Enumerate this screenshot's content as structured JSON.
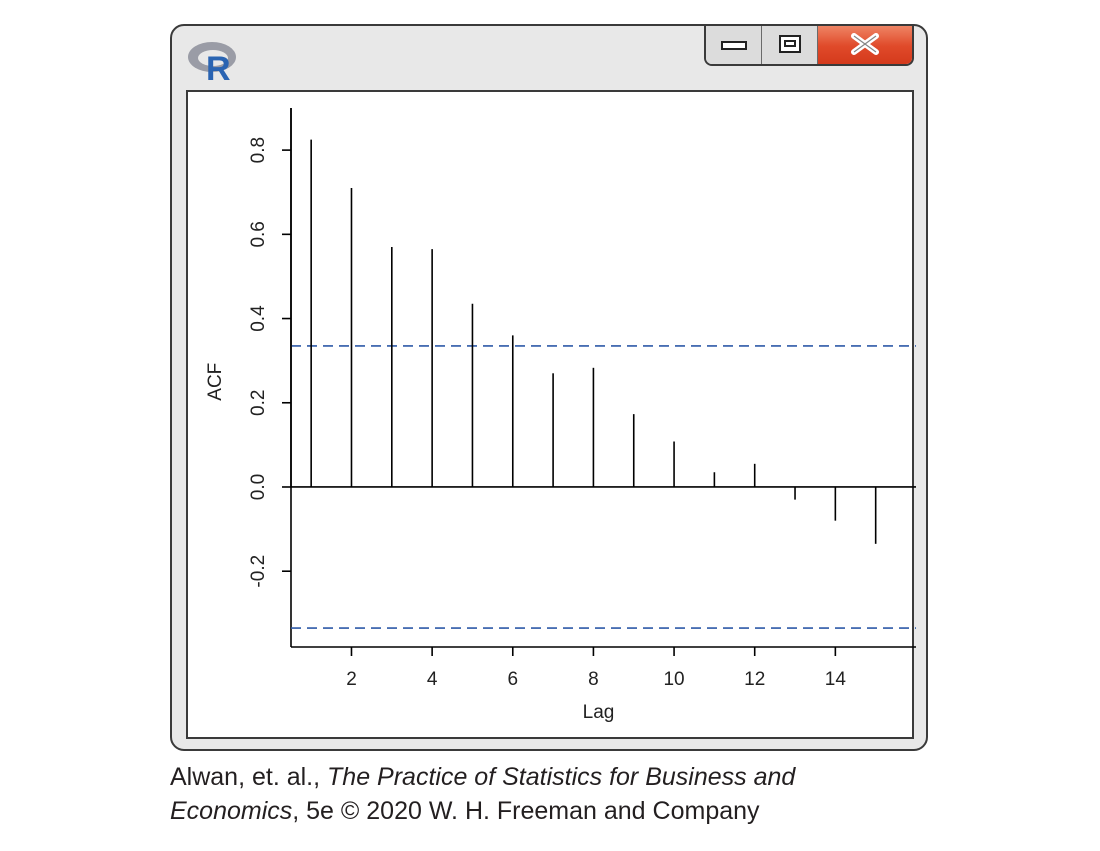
{
  "window": {
    "app_icon": "r-logo-icon",
    "logo_letter": "R",
    "buttons": {
      "minimize": "minimize-icon",
      "maximize": "maximize-icon",
      "close": "close-icon"
    },
    "colors": {
      "close_button": "#e04a2a",
      "logo_blue": "#2a64b2",
      "logo_gray": "#9a9ca6"
    }
  },
  "chart_data": {
    "type": "bar",
    "plot_kind": "acf-spikes",
    "xlabel": "Lag",
    "ylabel": "ACF",
    "x": [
      1,
      2,
      3,
      4,
      5,
      6,
      7,
      8,
      9,
      10,
      11,
      12,
      13,
      14,
      15
    ],
    "values": [
      0.825,
      0.71,
      0.57,
      0.565,
      0.435,
      0.36,
      0.27,
      0.283,
      0.173,
      0.108,
      0.035,
      0.055,
      -0.03,
      -0.08,
      -0.135
    ],
    "lag0_value": 1.0,
    "xlim": [
      0.5,
      16
    ],
    "ylim": [
      -0.38,
      0.9
    ],
    "xticks": [
      2,
      4,
      6,
      8,
      10,
      12,
      14
    ],
    "yticks": [
      -0.2,
      0.0,
      0.2,
      0.4,
      0.6,
      0.8
    ],
    "ytick_labels": [
      "-0.2",
      "0.0",
      "0.2",
      "0.4",
      "0.6",
      "0.8"
    ],
    "confidence_band": 0.335,
    "colors": {
      "spikes": "#000000",
      "confidence_lines": "#2f5aa8",
      "zero_line": "#000000"
    },
    "grid": false
  },
  "caption": {
    "author": "Alwan, et. al., ",
    "title_line1": "The Practice of Statistics for Business and",
    "title_line2": "Economics",
    "rest": ", 5e © 2020 W. H. Freeman and Company"
  }
}
